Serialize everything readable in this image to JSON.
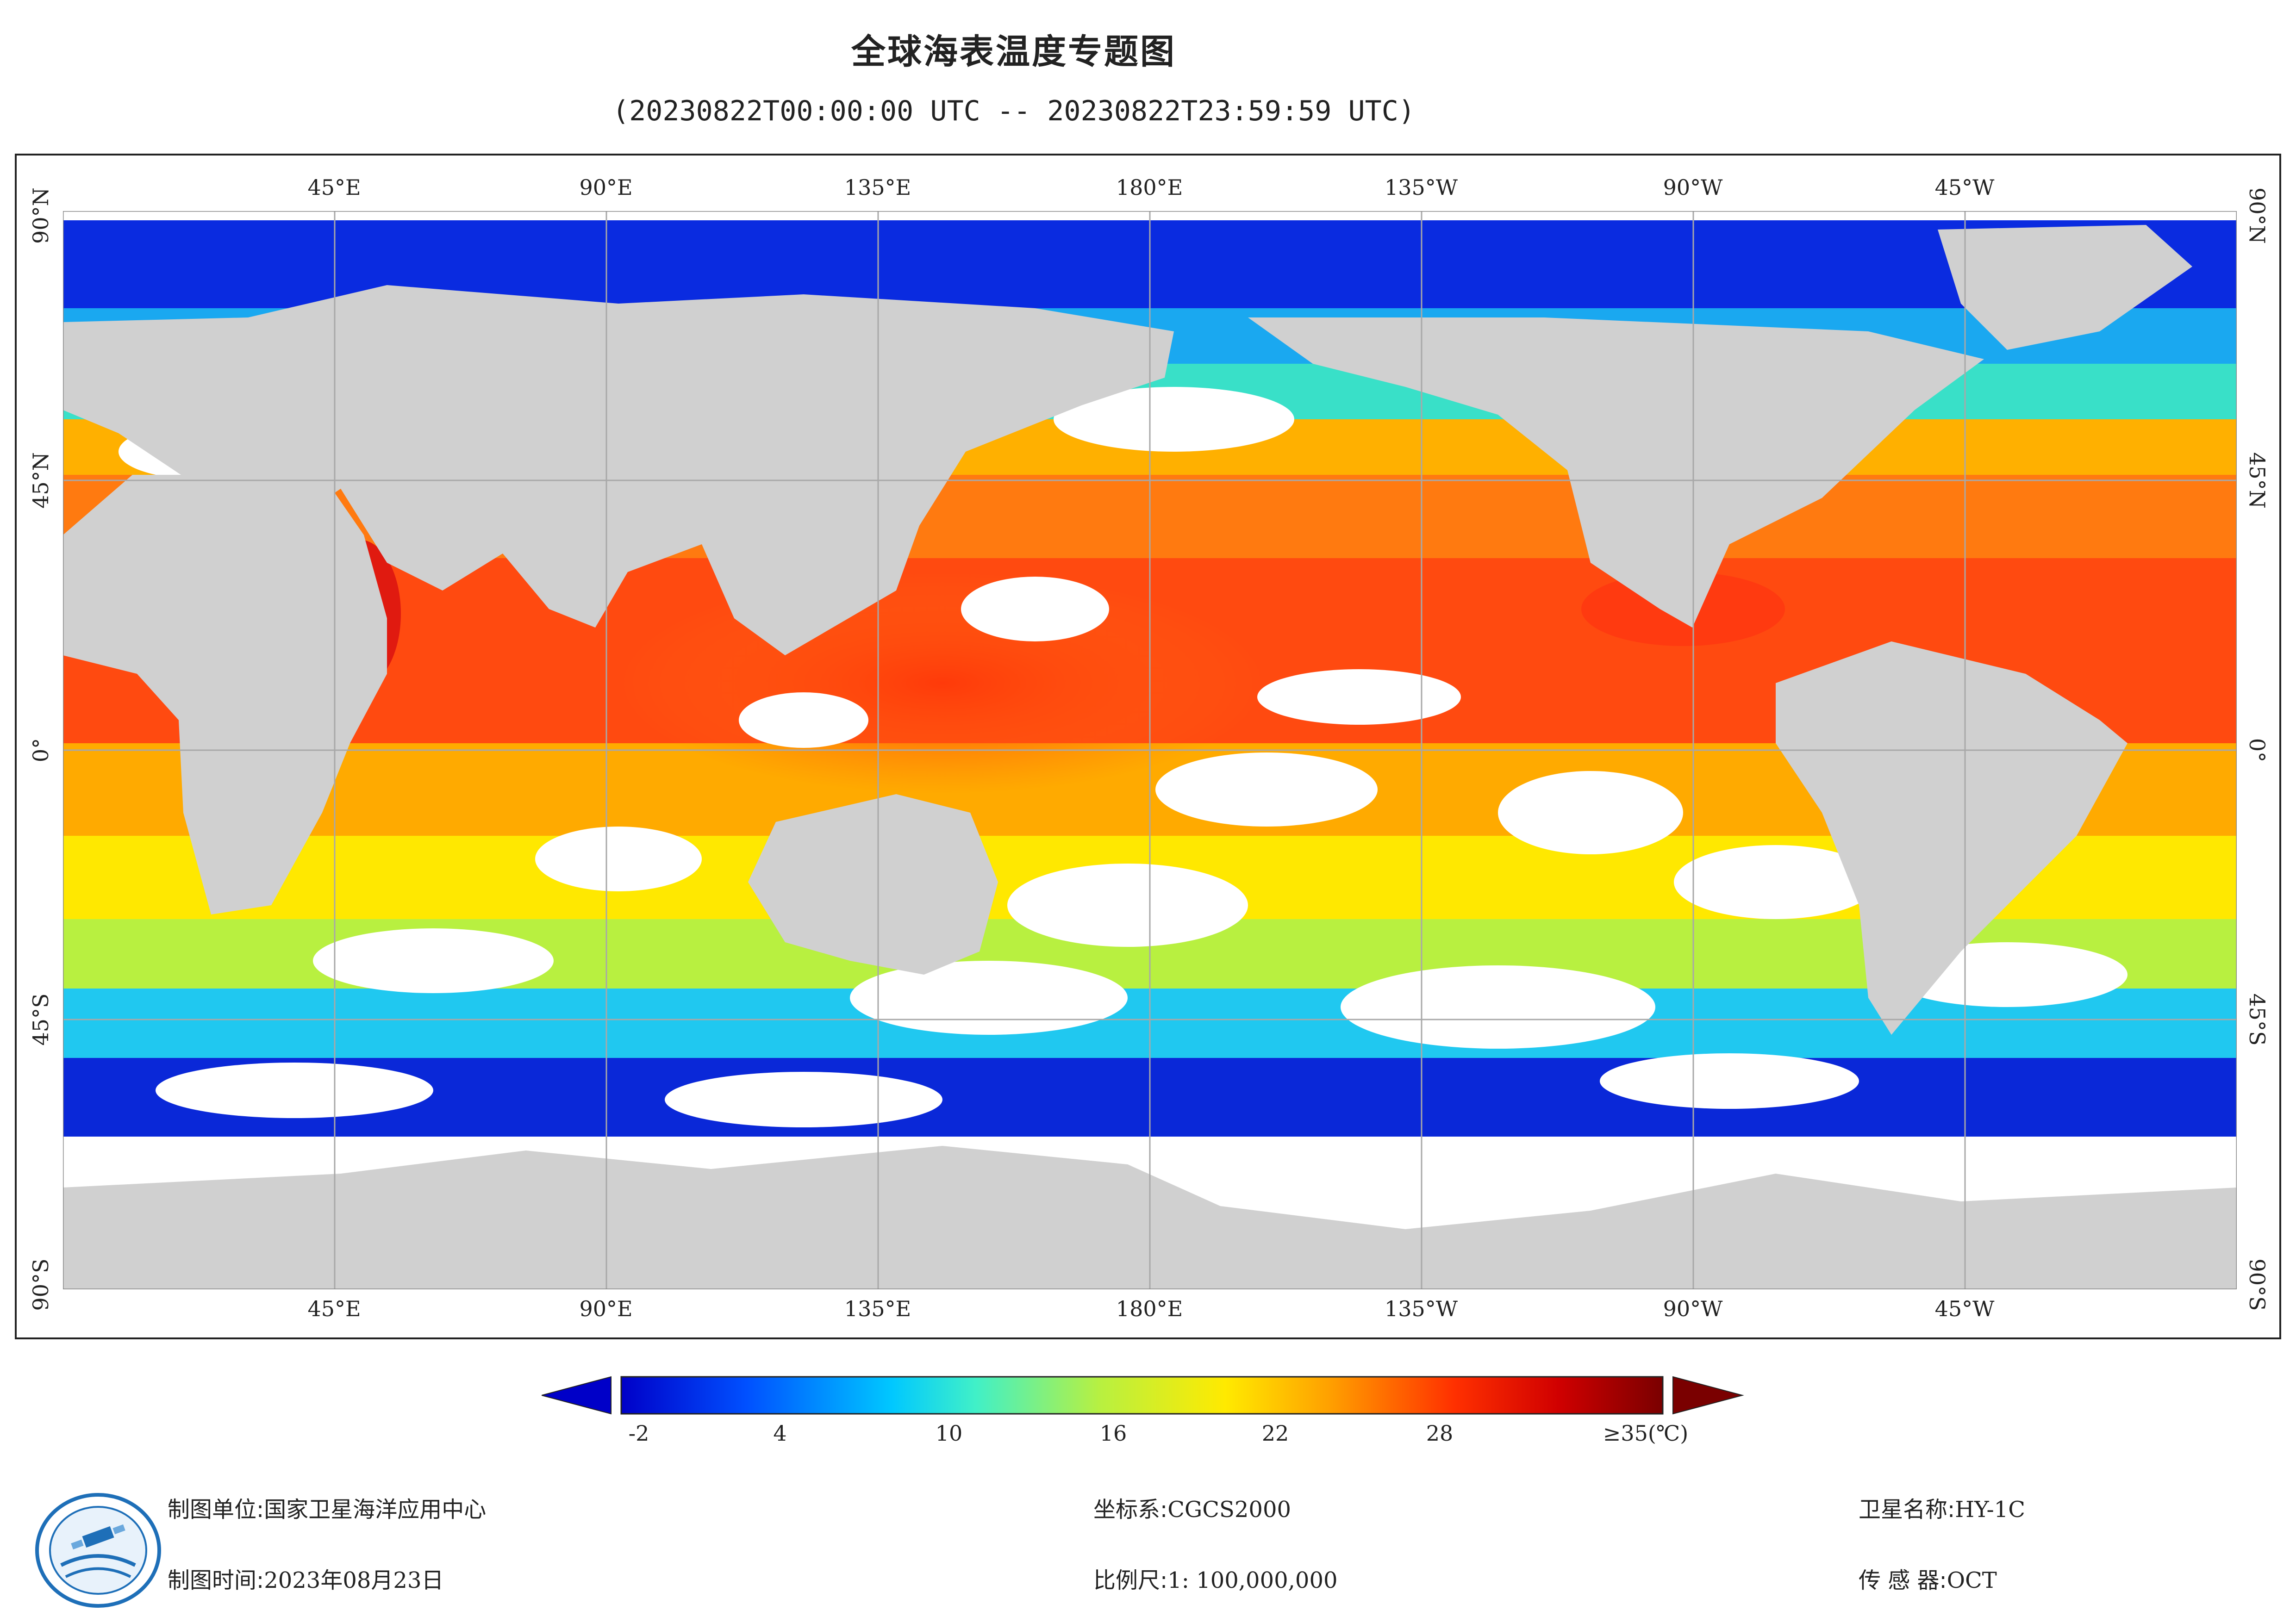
{
  "header": {
    "title": "全球海表温度专题图",
    "subtitle": "(20230822T00:00:00 UTC -- 20230822T23:59:59 UTC)"
  },
  "map": {
    "lon_ticks": [
      "45°E",
      "90°E",
      "135°E",
      "180°E",
      "135°W",
      "90°W",
      "45°W"
    ],
    "lat_ticks": [
      "90°N",
      "45°N",
      "0°",
      "45°S",
      "90°S"
    ],
    "colors": {
      "land": "#d0d0d0",
      "nodata": "#ffffff",
      "grid": "#a8a8a8"
    }
  },
  "colorbar": {
    "labels": [
      "-2",
      "4",
      "10",
      "16",
      "22",
      "28",
      "≥35(℃)"
    ],
    "min_color": "#0000c8",
    "max_color": "#7a0000"
  },
  "footer": {
    "unit_label": "制图单位:",
    "unit_value": "国家卫星海洋应用中心",
    "time_label": "制图时间:",
    "time_value": "2023年08月23日",
    "crs_label": "坐标系:",
    "crs_value": "CGCS2000",
    "scale_label": "比例尺:",
    "scale_value": "1: 100,000,000",
    "sat_label": "卫星名称:",
    "sat_value": "HY-1C",
    "sensor_label": "传 感 器:",
    "sensor_value": "OCT"
  }
}
